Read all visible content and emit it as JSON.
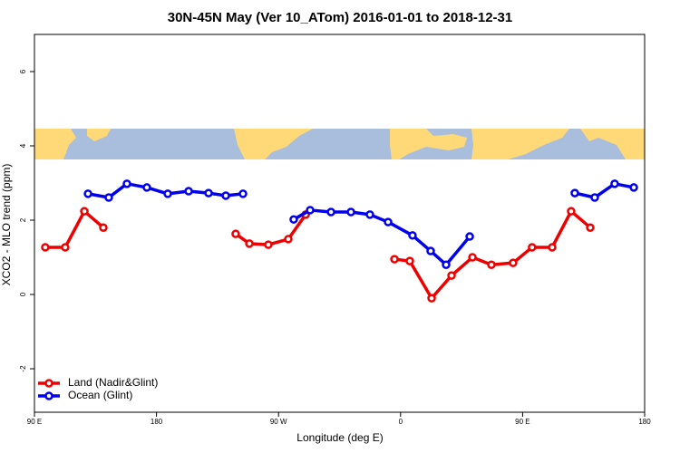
{
  "chart_data": {
    "type": "line",
    "title": "30N-45N May (Ver 10_ATom)   2016-01-01 to 2018-12-31",
    "x_label": "Longitude (deg E)",
    "y_label": "XCO2 - MLO trend (ppm)",
    "xlim": [
      90,
      540
    ],
    "ylim": [
      -3.17,
      7.0
    ],
    "xticks": [
      {
        "value": 90,
        "label": "90 E"
      },
      {
        "value": 180,
        "label": "180"
      },
      {
        "value": 270,
        "label": "90 W"
      },
      {
        "value": 360,
        "label": "0"
      },
      {
        "value": 450,
        "label": "90 E"
      },
      {
        "value": 540,
        "label": "180"
      }
    ],
    "yticks": [
      -2,
      0,
      2,
      4,
      6
    ],
    "legend": "bottom-left",
    "series": [
      {
        "name": "Land (Nadir&Glint)",
        "color": "#ee0000",
        "x": [
          98,
          112.7,
          126.8,
          140.8,
          null,
          238.4,
          248.5,
          262.5,
          277.2,
          290,
          null,
          355.5,
          366.8,
          382.9,
          397.6,
          413,
          427,
          443,
          457,
          471.8,
          485.8,
          499.9
        ],
        "values": [
          1.27,
          1.27,
          2.24,
          1.8,
          null,
          1.63,
          1.37,
          1.34,
          1.49,
          2.15,
          null,
          0.95,
          0.9,
          -0.1,
          0.51,
          1.0,
          0.8,
          0.85,
          1.27,
          1.27,
          2.24,
          1.8
        ]
      },
      {
        "name": "Ocean (Glint)",
        "color": "#0000ee",
        "x": [
          129.5,
          144.8,
          158.2,
          172.9,
          188.3,
          203.7,
          218.4,
          231.1,
          243.8,
          null,
          281.2,
          293.3,
          308.7,
          323.4,
          337.4,
          350.8,
          368.8,
          382.2,
          393.6,
          411,
          null,
          488.5,
          503.2,
          517.9,
          532
        ],
        "values": [
          2.71,
          2.61,
          2.98,
          2.88,
          2.71,
          2.78,
          2.73,
          2.66,
          2.71,
          null,
          2.02,
          2.27,
          2.22,
          2.22,
          2.15,
          1.95,
          1.59,
          1.17,
          0.8,
          1.56,
          null,
          2.73,
          2.61,
          2.98,
          2.88
        ]
      }
    ]
  }
}
